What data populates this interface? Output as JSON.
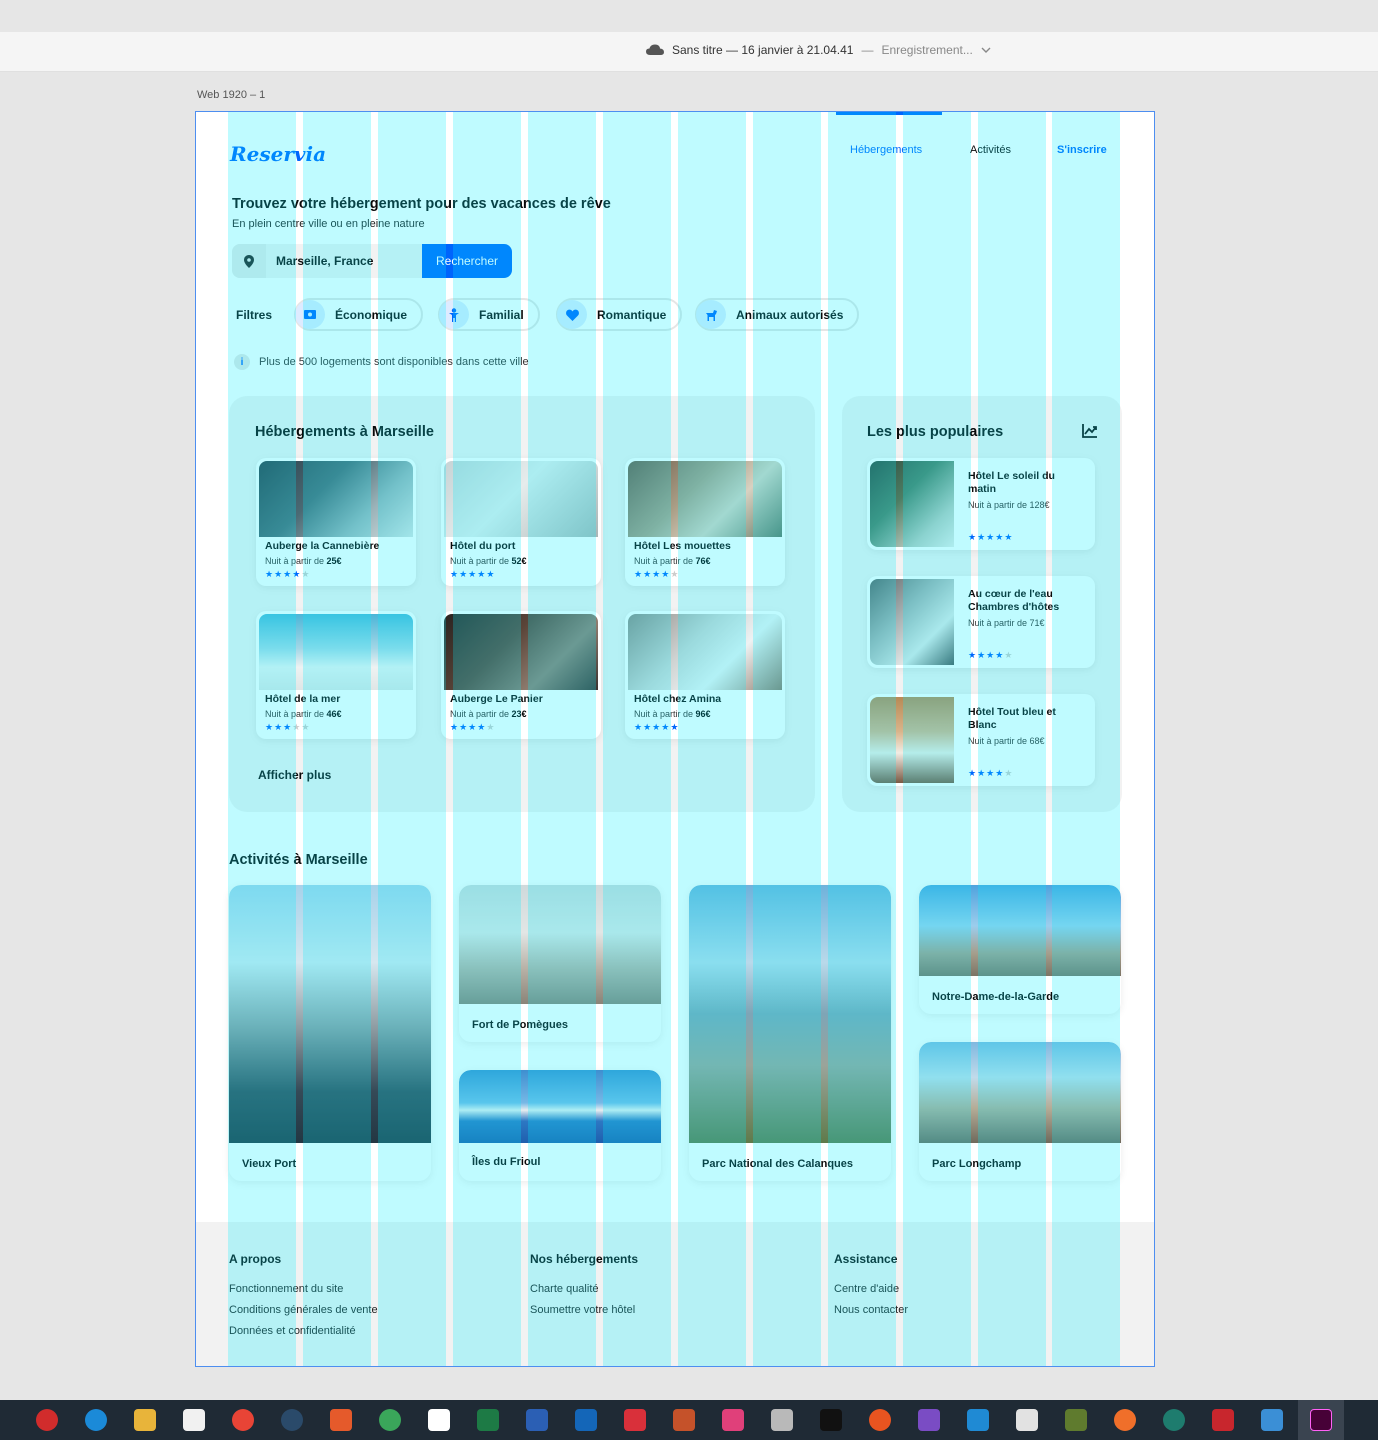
{
  "window": {
    "document_title": "Sans titre — 16 janvier à 21.04.41",
    "separator": "—",
    "status": "Enregistrement...",
    "artboard_label": "Web 1920 – 1"
  },
  "site": {
    "logo": "Reservia",
    "nav": {
      "accommodations": "Hébergements",
      "activities": "Activités",
      "signup": "S'inscrire"
    },
    "hero_title": "Trouvez votre hébergement pour des vacances de rêve",
    "hero_subtitle": "En plein centre ville ou en pleine nature",
    "search": {
      "value": "Marseille, France",
      "button": "Rechercher"
    },
    "filters": {
      "label": "Filtres",
      "items": [
        {
          "label": "Économique",
          "icon": "money-icon"
        },
        {
          "label": "Familial",
          "icon": "child-icon"
        },
        {
          "label": "Romantique",
          "icon": "heart-icon"
        },
        {
          "label": "Animaux autorisés",
          "icon": "dog-icon"
        }
      ]
    },
    "info": {
      "icon_text": "i",
      "text": "Plus de 500 logements sont disponibles dans cette ville"
    },
    "accommodations": {
      "title": "Hébergements à Marseille",
      "show_more": "Afficher plus",
      "price_prefix": "Nuit à partir de",
      "items": [
        {
          "name": "Auberge la Cannebière",
          "price": "25€",
          "rating": 4
        },
        {
          "name": "Hôtel du port",
          "price": "52€",
          "rating": 5
        },
        {
          "name": "Hôtel Les mouettes",
          "price": "76€",
          "rating": 4
        },
        {
          "name": "Hôtel de la mer",
          "price": "46€",
          "rating": 3
        },
        {
          "name": "Auberge Le Panier",
          "price": "23€",
          "rating": 4
        },
        {
          "name": "Hôtel chez Amina",
          "price": "96€",
          "rating": 5
        }
      ]
    },
    "popular": {
      "title": "Les plus populaires",
      "icon": "trending-chart-icon",
      "items": [
        {
          "name": "Hôtel Le soleil du matin",
          "price_text": "Nuit à partir de 128€",
          "rating": 5
        },
        {
          "name": "Au cœur de l'eau Chambres d'hôtes",
          "price_text": "Nuit à partir de 71€",
          "rating": 4
        },
        {
          "name": "Hôtel Tout bleu et Blanc",
          "price_text": "Nuit à partir de 68€",
          "rating": 4
        }
      ]
    },
    "activities": {
      "title": "Activités à Marseille",
      "items": [
        "Vieux Port",
        "Fort de Pomègues",
        "Îles du Frioul",
        "Parc National des Calanques",
        "Notre-Dame-de-la-Garde",
        "Parc Longchamp"
      ]
    },
    "footer": {
      "columns": [
        {
          "title": "A propos",
          "links": [
            "Fonctionnement du site",
            "Conditions générales de vente",
            "Données et confidentialité"
          ]
        },
        {
          "title": "Nos hébergements",
          "links": [
            "Charte qualité",
            "Soumettre votre hôtel"
          ]
        },
        {
          "title": "Assistance",
          "links": [
            "Centre d'aide",
            "Nous contacter"
          ]
        }
      ]
    }
  },
  "colors": {
    "brand": "#0065fc",
    "panel": "#f2f2f2",
    "grid_overlay": "#00f0ff"
  }
}
